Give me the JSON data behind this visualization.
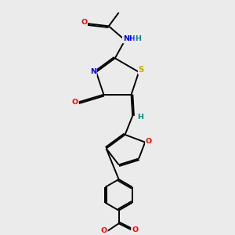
{
  "bg_color": "#ebebeb",
  "bond_color": "#000000",
  "atom_colors": {
    "O": "#ff0000",
    "N": "#0000ff",
    "S": "#ccaa00",
    "H": "#008888",
    "C": "#000000"
  },
  "figsize": [
    3.0,
    3.0
  ],
  "dpi": 100
}
